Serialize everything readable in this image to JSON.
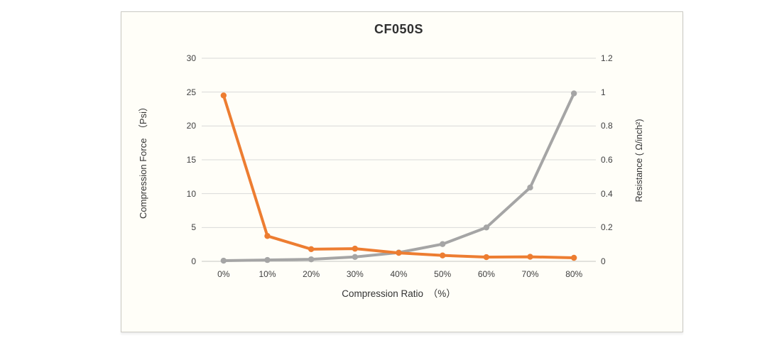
{
  "chart_data": {
    "type": "line",
    "title": "CF050S",
    "x_axis_title": "Compression Ratio　（%）",
    "categories": [
      "0%",
      "10%",
      "20%",
      "30%",
      "40%",
      "50%",
      "60%",
      "70%",
      "80%"
    ],
    "left_axis": {
      "title": "Compression Force　（Psi）",
      "min": 0,
      "max": 30,
      "step": 5,
      "ticks": [
        "30",
        "25",
        "20",
        "15",
        "10",
        "5",
        "0"
      ]
    },
    "right_axis": {
      "title": "Resistance ( Ω/inch²)",
      "min": 0,
      "max": 1.2,
      "step": 0.2,
      "ticks": [
        "1.2",
        "1",
        "0.8",
        "0.6",
        "0.4",
        "0.2",
        "0"
      ]
    },
    "series": [
      {
        "name": "Compression Force",
        "axis": "left",
        "color": "#A5A5A5",
        "values": [
          0.1,
          0.2,
          0.3,
          0.65,
          1.3,
          2.55,
          5.0,
          10.9,
          24.8
        ]
      },
      {
        "name": "Resistance",
        "axis": "right",
        "color": "#ED7D31",
        "values": [
          0.98,
          0.15,
          0.072,
          0.075,
          0.05,
          0.035,
          0.025,
          0.027,
          0.021
        ]
      }
    ],
    "grid": true,
    "grid_color": "#D9D9D9",
    "axis_line_color": "#C6C6C2",
    "legend": "none"
  }
}
